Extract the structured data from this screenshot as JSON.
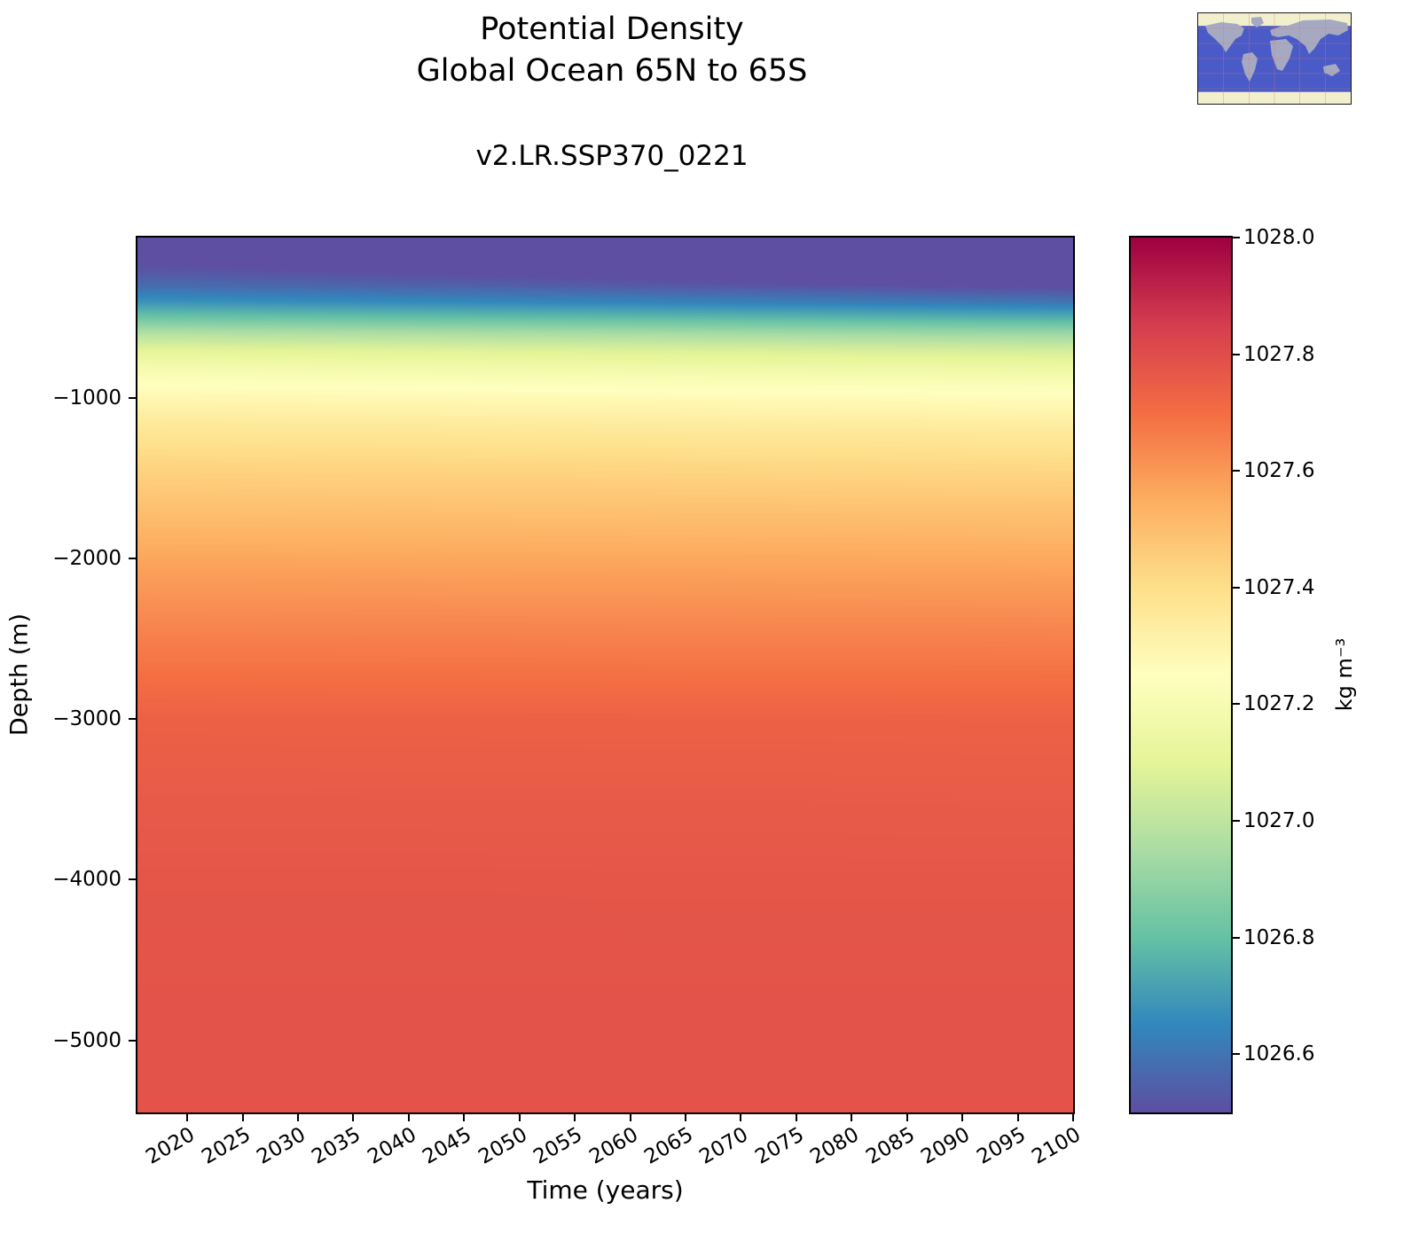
{
  "chart_data": {
    "type": "heatmap",
    "title_lines": [
      "Potential Density",
      "Global Ocean 65N to 65S"
    ],
    "subtitle": "v2.LR.SSP370_0221",
    "xlabel": "Time (years)",
    "ylabel": "Depth (m)",
    "x_range": [
      2015.5,
      2100
    ],
    "depth_max": 5450,
    "x_ticks": [
      2020,
      2025,
      2030,
      2035,
      2040,
      2045,
      2050,
      2055,
      2060,
      2065,
      2070,
      2075,
      2080,
      2085,
      2090,
      2095,
      2100
    ],
    "x_tick_labels": [
      "2020",
      "2025",
      "2030",
      "2035",
      "2040",
      "2045",
      "2050",
      "2055",
      "2060",
      "2065",
      "2070",
      "2075",
      "2080",
      "2085",
      "2090",
      "2095",
      "2100"
    ],
    "y_ticks": [
      -1000,
      -2000,
      -3000,
      -4000,
      -5000
    ],
    "y_tick_labels": [
      "−1000",
      "−2000",
      "−3000",
      "−4000",
      "−5000"
    ],
    "colorbar": {
      "label": "kg m⁻³",
      "vmin": 1026.5,
      "vmax": 1028.0,
      "colormap": "Spectral_r",
      "ticks": [
        1028.0,
        1027.8,
        1027.6,
        1027.4,
        1027.2,
        1027.0,
        1026.8,
        1026.6
      ],
      "tick_labels": [
        "1028.0",
        "1027.8",
        "1027.6",
        "1027.4",
        "1027.2",
        "1027.0",
        "1026.8",
        "1026.6"
      ]
    },
    "colormap_stops": [
      [
        0.0,
        "#5e4fa2"
      ],
      [
        0.1,
        "#3288bd"
      ],
      [
        0.2,
        "#66c2a5"
      ],
      [
        0.3,
        "#abdda4"
      ],
      [
        0.4,
        "#e6f598"
      ],
      [
        0.5,
        "#ffffbf"
      ],
      [
        0.6,
        "#fee08b"
      ],
      [
        0.7,
        "#fdae61"
      ],
      [
        0.8,
        "#f46d43"
      ],
      [
        0.9,
        "#d53e4f"
      ],
      [
        1.0,
        "#9e0142"
      ]
    ],
    "x_years": [
      2015,
      2030,
      2045,
      2060,
      2075,
      2090,
      2100
    ],
    "y_depths": [
      0,
      -100,
      -200,
      -300,
      -400,
      -500,
      -600,
      -700,
      -800,
      -900,
      -1000,
      -1200,
      -1400,
      -1700,
      -2000,
      -2500,
      -3000,
      -3500,
      -4000,
      -4500,
      -5000,
      -5500
    ],
    "values": [
      [
        1026.45,
        1026.429,
        1026.408,
        1026.387,
        1026.365,
        1026.344,
        1026.33
      ],
      [
        1026.48,
        1026.461,
        1026.441,
        1026.422,
        1026.402,
        1026.383,
        1026.37
      ],
      [
        1026.52,
        1026.502,
        1026.485,
        1026.467,
        1026.449,
        1026.432,
        1026.42
      ],
      [
        1026.58,
        1026.564,
        1026.548,
        1026.532,
        1026.516,
        1026.501,
        1026.49
      ],
      [
        1026.68,
        1026.666,
        1026.652,
        1026.638,
        1026.624,
        1026.609,
        1026.6
      ],
      [
        1026.82,
        1026.808,
        1026.795,
        1026.783,
        1026.771,
        1026.758,
        1026.75
      ],
      [
        1026.98,
        1026.969,
        1026.959,
        1026.948,
        1026.938,
        1026.927,
        1026.92
      ],
      [
        1027.1,
        1027.091,
        1027.082,
        1027.074,
        1027.065,
        1027.056,
        1027.05
      ],
      [
        1027.18,
        1027.173,
        1027.166,
        1027.159,
        1027.152,
        1027.145,
        1027.14
      ],
      [
        1027.24,
        1027.235,
        1027.229,
        1027.224,
        1027.219,
        1027.214,
        1027.21
      ],
      [
        1027.29,
        1027.286,
        1027.281,
        1027.277,
        1027.272,
        1027.268,
        1027.265
      ],
      [
        1027.37,
        1027.366,
        1027.363,
        1027.359,
        1027.356,
        1027.352,
        1027.35
      ],
      [
        1027.43,
        1027.427,
        1027.425,
        1027.422,
        1027.419,
        1027.417,
        1027.415
      ],
      [
        1027.5,
        1027.498,
        1027.496,
        1027.495,
        1027.493,
        1027.491,
        1027.49
      ],
      [
        1027.57,
        1027.569,
        1027.567,
        1027.566,
        1027.564,
        1027.563,
        1027.562
      ],
      [
        1027.66,
        1027.659,
        1027.658,
        1027.657,
        1027.656,
        1027.656,
        1027.655
      ],
      [
        1027.74,
        1027.739,
        1027.739,
        1027.738,
        1027.738,
        1027.737,
        1027.737
      ],
      [
        1027.76,
        1027.76,
        1027.759,
        1027.759,
        1027.759,
        1027.758,
        1027.758
      ],
      [
        1027.775,
        1027.775,
        1027.775,
        1027.774,
        1027.774,
        1027.774,
        1027.774
      ],
      [
        1027.78,
        1027.78,
        1027.78,
        1027.78,
        1027.78,
        1027.78,
        1027.78
      ],
      [
        1027.785,
        1027.785,
        1027.785,
        1027.785,
        1027.785,
        1027.785,
        1027.785
      ],
      [
        1027.785,
        1027.785,
        1027.785,
        1027.785,
        1027.785,
        1027.785,
        1027.785
      ]
    ]
  },
  "inset_map": {
    "ocean_color": "#4a5bc8",
    "land_color": "#a5aac2",
    "polar_color": "#f2efcd"
  }
}
